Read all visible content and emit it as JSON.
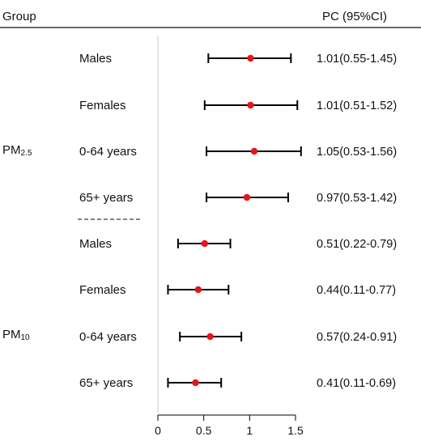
{
  "chart_data": {
    "type": "forest",
    "header": {
      "group": "Group",
      "estimate": "PC (95%CI)"
    },
    "xlim": [
      0,
      1.5
    ],
    "xticks": [
      0,
      0.5,
      1,
      1.5
    ],
    "xtick_labels": [
      "0",
      "0.5",
      "1",
      "1.5"
    ],
    "reference_line": 0,
    "point_color": "#e8141b",
    "groups": [
      {
        "name": "PM",
        "subscript": "2.5",
        "rows": [
          {
            "label": "Males",
            "estimate": 1.01,
            "lower": 0.55,
            "upper": 1.45,
            "text": "1.01(0.55-1.45)"
          },
          {
            "label": "Females",
            "estimate": 1.01,
            "lower": 0.51,
            "upper": 1.52,
            "text": "1.01(0.51-1.52)"
          },
          {
            "label": "0-64 years",
            "estimate": 1.05,
            "lower": 0.53,
            "upper": 1.56,
            "text": "1.05(0.53-1.56)"
          },
          {
            "label": "65+ years",
            "estimate": 0.97,
            "lower": 0.53,
            "upper": 1.42,
            "text": "0.97(0.53-1.42)"
          }
        ]
      },
      {
        "name": "PM",
        "subscript": "10",
        "rows": [
          {
            "label": "Males",
            "estimate": 0.51,
            "lower": 0.22,
            "upper": 0.79,
            "text": "0.51(0.22-0.79)"
          },
          {
            "label": "Females",
            "estimate": 0.44,
            "lower": 0.11,
            "upper": 0.77,
            "text": "0.44(0.11-0.77)"
          },
          {
            "label": "0-64 years",
            "estimate": 0.57,
            "lower": 0.24,
            "upper": 0.91,
            "text": "0.57(0.24-0.91)"
          },
          {
            "label": "65+ years",
            "estimate": 0.41,
            "lower": 0.11,
            "upper": 0.69,
            "text": "0.41(0.11-0.69)"
          }
        ]
      }
    ]
  }
}
